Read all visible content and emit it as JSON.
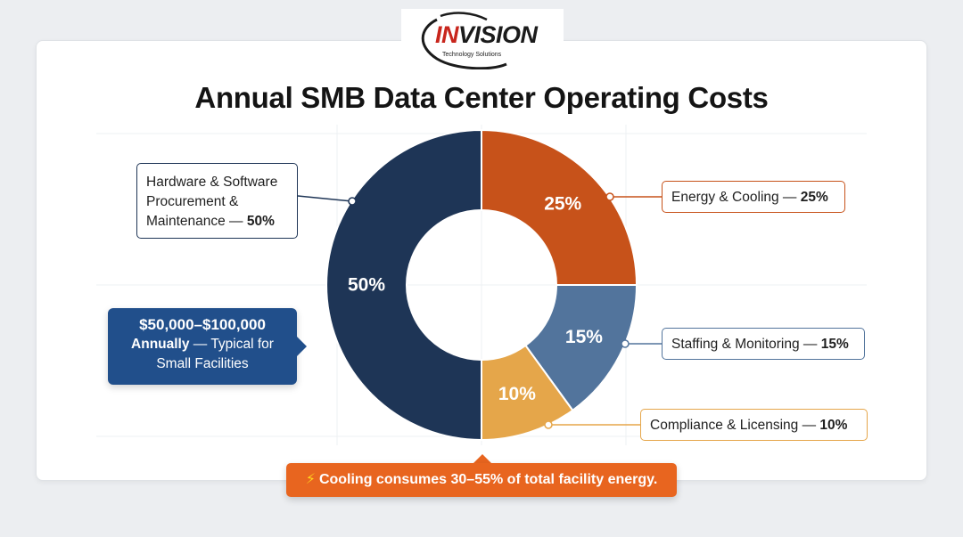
{
  "logo": {
    "word_prefix": "IN",
    "word_rest": "VISION",
    "tagline": "Technology Solutions"
  },
  "chart_data": {
    "type": "pie",
    "title": "Annual SMB Data Center Operating Costs",
    "slices": [
      {
        "label": "Energy & Cooling",
        "value": 25,
        "value_label": "25%",
        "color": "#c7521a"
      },
      {
        "label": "Staffing & Monitoring",
        "value": 15,
        "value_label": "15%",
        "color": "#52749c"
      },
      {
        "label": "Compliance & Licensing",
        "value": 10,
        "value_label": "10%",
        "color": "#e5a64a"
      },
      {
        "label": "Hardware & Software Procurement & Maintenance",
        "value": 50,
        "value_label": "50%",
        "color": "#1e3556"
      }
    ]
  },
  "callouts": {
    "hardware": {
      "text": "Hardware & Software Procurement & Maintenance —",
      "pct": "50%"
    },
    "energy": {
      "text": "Energy & Cooling —",
      "pct": "25%"
    },
    "staffing": {
      "text": "Staffing & Monitoring —",
      "pct": "15%"
    },
    "compliance": {
      "text": "Compliance & Licensing —",
      "pct": "10%"
    }
  },
  "cost_box": {
    "amount": "$50,000–$100,000",
    "annually": "Annually",
    "rest": "— Typical for Small Facilities",
    "color": "#214f8b"
  },
  "banner": {
    "icon": "lightning-icon",
    "text": "Cooling consumes 30–55% of total facility energy.",
    "color": "#e8651f"
  }
}
